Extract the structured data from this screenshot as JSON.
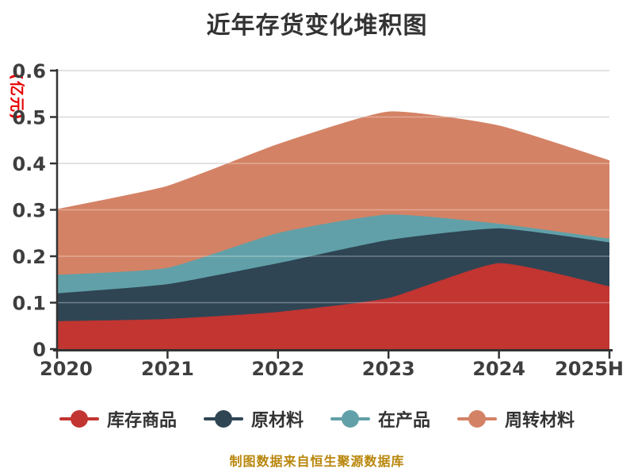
{
  "title": "近年存货变化堆积图",
  "y_axis_name": "(亿元)",
  "footer": "制图数据来自恒生聚源数据库",
  "chart_data": {
    "type": "area",
    "stacked": true,
    "smooth": true,
    "title": "近年存货变化堆积图",
    "ylabel": "(亿元)",
    "xlabel": "",
    "categories": [
      "2020",
      "2021",
      "2022",
      "2023",
      "2024",
      "2025H"
    ],
    "series": [
      {
        "name": "库存商品",
        "color": "#c23531",
        "values": [
          0.06,
          0.065,
          0.08,
          0.11,
          0.185,
          0.135
        ]
      },
      {
        "name": "原材料",
        "color": "#2f4554",
        "values": [
          0.06,
          0.075,
          0.105,
          0.125,
          0.075,
          0.095
        ]
      },
      {
        "name": "在产品",
        "color": "#61a0a8",
        "values": [
          0.04,
          0.035,
          0.065,
          0.055,
          0.01,
          0.008
        ]
      },
      {
        "name": "周转材料",
        "color": "#d48265",
        "values": [
          0.14,
          0.175,
          0.19,
          0.22,
          0.21,
          0.167
        ]
      }
    ],
    "stack_totals": [
      0.3,
      0.35,
      0.44,
      0.51,
      0.48,
      0.405
    ],
    "ylim": [
      0,
      0.6
    ],
    "y_ticks": [
      0,
      0.1,
      0.2,
      0.3,
      0.4,
      0.5,
      0.6
    ],
    "y_tick_labels": [
      "0",
      "0.1",
      "0.2",
      "0.3",
      "0.4",
      "0.5",
      "0.6"
    ],
    "grid": true,
    "legend_position": "bottom"
  },
  "style": {
    "axis_color": "#333333",
    "grid_color": "#cccccc",
    "tick_label_color": "#3e3e3e",
    "title_color": "#333333",
    "y_name_color": "#e60000",
    "footer_color": "#b8860b",
    "background": "#ffffff"
  }
}
